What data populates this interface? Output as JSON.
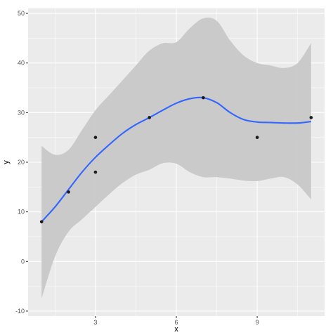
{
  "chart_data": {
    "type": "scatter",
    "title": "",
    "xlabel": "x",
    "ylabel": "y",
    "xlim": [
      0.5,
      11.5
    ],
    "ylim": [
      -11,
      51
    ],
    "x_ticks": [
      3,
      6,
      9
    ],
    "x_tick_labels": [
      "3",
      "6",
      "9"
    ],
    "y_ticks": [
      -10,
      0,
      10,
      20,
      30,
      40,
      50
    ],
    "y_tick_labels": [
      "-10",
      "0",
      "10",
      "20",
      "30",
      "40",
      "50"
    ],
    "grid": true,
    "legend": "none",
    "points": {
      "x": [
        1,
        2,
        3,
        3,
        5,
        7,
        9,
        11
      ],
      "y": [
        8,
        14,
        25,
        18,
        29,
        33,
        25,
        29
      ]
    },
    "smooth": {
      "x": [
        1,
        1.5,
        2,
        2.5,
        3,
        3.5,
        4,
        4.5,
        5,
        5.5,
        6,
        6.5,
        7,
        7.5,
        8,
        8.5,
        9,
        9.5,
        10,
        10.5,
        11
      ],
      "y": [
        8,
        11,
        14.5,
        18,
        21,
        23.5,
        25.8,
        27.6,
        29,
        30.5,
        31.9,
        32.8,
        33,
        32,
        30,
        28.6,
        28.1,
        28,
        27.9,
        27.9,
        28.2
      ],
      "lower": [
        -7.5,
        1,
        6,
        8.5,
        11,
        13.5,
        15.8,
        17.5,
        18.5,
        19.8,
        19.7,
        18,
        17,
        17,
        16.7,
        16.3,
        16.2,
        16.7,
        17,
        15.5,
        12.5
      ],
      "upper": [
        23.3,
        21.5,
        22.5,
        26.5,
        30.5,
        33.5,
        36.5,
        39.5,
        42.5,
        44,
        44.2,
        47,
        49,
        48.5,
        44.5,
        41.5,
        40,
        39.5,
        39,
        40,
        44
      ]
    },
    "colors": {
      "panel": "#ebebeb",
      "grid_major": "#ffffff",
      "band": "#c8c8c8",
      "line": "#3366ff",
      "point": "#1a1a1a",
      "tick": "#333333"
    }
  }
}
